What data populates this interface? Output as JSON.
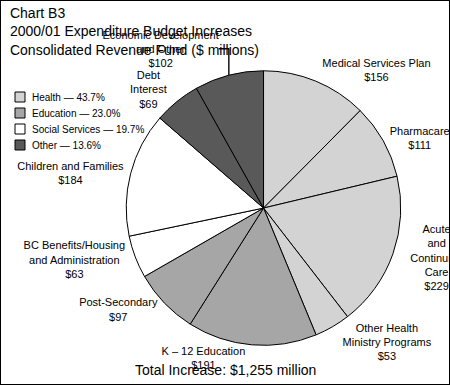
{
  "chart_data": {
    "type": "pie",
    "title": "Chart B3\n2000/01 Expenditure Budget Increases\nConsolidated Revenue Fund ($ millions)",
    "categories": [
      "Medical Services Plan",
      "Pharmacare",
      "Acute\nand\nContinuing\nCare",
      "Other Health\nMinistry Programs",
      "K – 12 Education",
      "Post-Secondary",
      "BC Benefits/Housing\nand Administration",
      "Children and Families",
      "Debt\nInterest",
      "Economic Development\nand Other"
    ],
    "values": [
      156,
      111,
      229,
      53,
      191,
      97,
      63,
      184,
      69,
      102
    ],
    "value_labels": [
      "$156",
      "$111",
      "$229",
      "$53",
      "$191",
      "$97",
      "$63",
      "$184",
      "$69",
      "$102"
    ],
    "colors": [
      "#d3d3d3",
      "#d3d3d3",
      "#d3d3d3",
      "#d3d3d3",
      "#a6a6a6",
      "#a6a6a6",
      "#ffffff",
      "#ffffff",
      "#595959",
      "#595959"
    ],
    "data_labels": true,
    "legend": "upper left",
    "legend_items": [
      {
        "label": "Health — 43.7%",
        "color": "#d3d3d3"
      },
      {
        "label": "Education — 23.0%",
        "color": "#a6a6a6"
      },
      {
        "label": "Social Services — 19.7%",
        "color": "#ffffff"
      },
      {
        "label": "Other — 13.6%",
        "color": "#595959"
      }
    ],
    "footer": "Total Increase: $1,255 million"
  }
}
